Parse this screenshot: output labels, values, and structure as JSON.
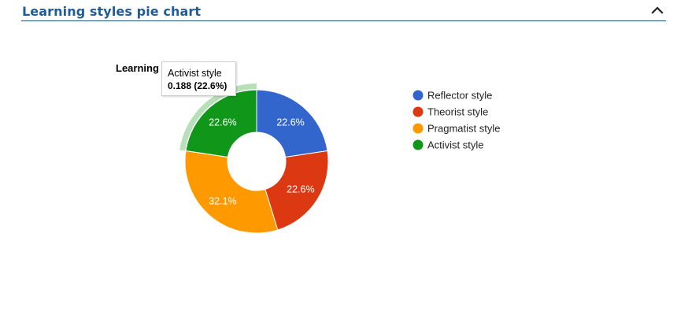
{
  "panel": {
    "title": "Learning styles pie chart",
    "collapse_icon": "chevron-up-icon"
  },
  "chart_data": {
    "type": "pie",
    "donut": true,
    "title": "Learning",
    "categories": [
      "Reflector style",
      "Theorist style",
      "Pragmatist style",
      "Activist style"
    ],
    "percent_labels": [
      "22.6%",
      "22.6%",
      "32.1%",
      "22.6%"
    ],
    "values": [
      0.188,
      0.188,
      0.267,
      0.188
    ],
    "colors": [
      "#3366cc",
      "#dc3912",
      "#ff9900",
      "#109618"
    ],
    "legend_position": "right",
    "highlighted_slice": "Activist style",
    "tooltip": {
      "label": "Activist style",
      "value": "0.188 (22.6%)"
    }
  }
}
